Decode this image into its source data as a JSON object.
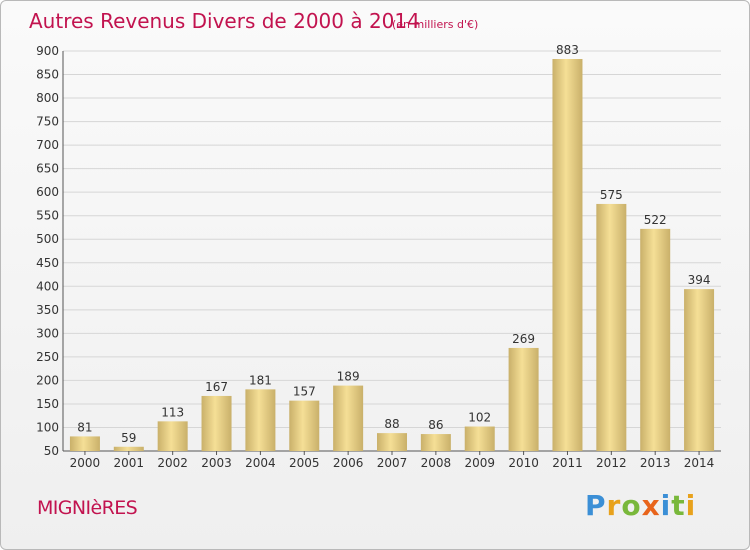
{
  "title": "Autres Revenus Divers de 2000 à 2014",
  "subtitle": "(en milliers d'€)",
  "commune": "MIGNIèRES",
  "logo_text": "Proxiti",
  "colors": {
    "title": "#c2134f",
    "bar_light": "#f5df96",
    "bar_dark": "#c9b06a",
    "grid": "#d6d6d6"
  },
  "chart_data": {
    "type": "bar",
    "title": "Autres Revenus Divers de 2000 à 2014",
    "subtitle": "(en milliers d'€)",
    "categories": [
      "2000",
      "2001",
      "2002",
      "2003",
      "2004",
      "2005",
      "2006",
      "2007",
      "2008",
      "2009",
      "2010",
      "2011",
      "2012",
      "2013",
      "2014"
    ],
    "values": [
      81,
      59,
      113,
      167,
      181,
      157,
      189,
      88,
      86,
      102,
      269,
      883,
      575,
      522,
      394
    ],
    "ylim": [
      50,
      900
    ],
    "yticks": [
      50,
      100,
      150,
      200,
      250,
      300,
      350,
      400,
      450,
      500,
      550,
      600,
      650,
      700,
      750,
      800,
      850,
      900
    ],
    "grid": true,
    "xlabel": "",
    "ylabel": ""
  }
}
